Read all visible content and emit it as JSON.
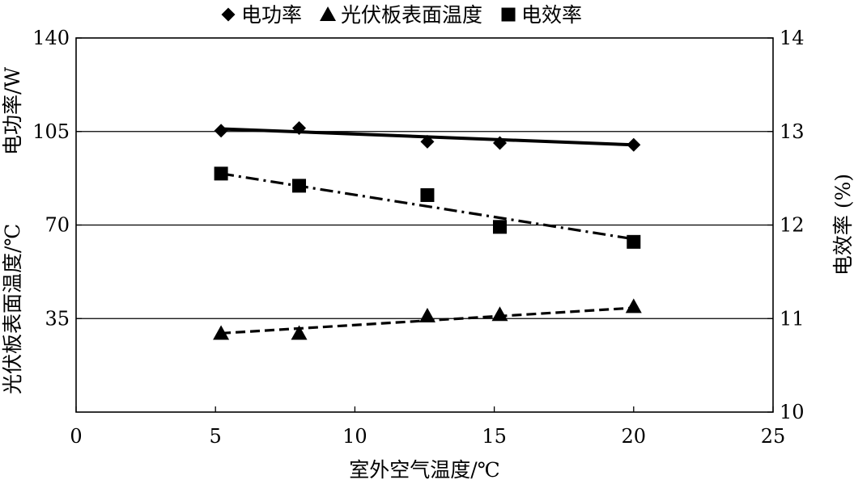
{
  "chart_data": {
    "type": "line",
    "title": "",
    "xlabel": "室外空气温度/℃",
    "ylabel_left": "光伏板表面温度/℃　电功率/W",
    "ylabel_left_parts": [
      "光伏板表面温度/℃",
      "电功率/W"
    ],
    "ylabel_right": "电效率 (%)",
    "xlim": [
      0,
      25
    ],
    "ylim_left": [
      0,
      140
    ],
    "ylim_right": [
      10,
      14
    ],
    "x_ticks": [
      "0",
      "5",
      "10",
      "15",
      "20",
      "25"
    ],
    "y_left_ticks": [
      "35",
      "70",
      "105",
      "140"
    ],
    "y_right_ticks": [
      "10",
      "11",
      "12",
      "13",
      "14"
    ],
    "grid": "horizontal",
    "legend_position": "top",
    "series": [
      {
        "name": "电功率",
        "axis": "left",
        "marker": "diamond",
        "line": "solid",
        "x": [
          5.2,
          8.0,
          12.6,
          15.2,
          20.0
        ],
        "y": [
          105.3,
          106.3,
          101.2,
          100.7,
          100.0
        ],
        "trend": [
          [
            5.2,
            106.0
          ],
          [
            20.0,
            100.0
          ]
        ]
      },
      {
        "name": "光伏板表面温度",
        "axis": "left",
        "marker": "triangle",
        "line": "dashed",
        "x": [
          5.2,
          8.0,
          12.6,
          15.2,
          20.0
        ],
        "y": [
          29.5,
          29.5,
          36.0,
          36.5,
          39.5
        ],
        "trend": [
          [
            5.2,
            29.5
          ],
          [
            20.0,
            39.0
          ]
        ]
      },
      {
        "name": "电效率",
        "axis": "right",
        "marker": "square",
        "line": "dashdot",
        "x": [
          5.2,
          8.0,
          12.6,
          15.2,
          20.0
        ],
        "y": [
          12.55,
          12.42,
          12.32,
          11.98,
          11.82
        ],
        "trend": [
          [
            5.2,
            12.55
          ],
          [
            20.0,
            11.85
          ]
        ]
      }
    ]
  }
}
